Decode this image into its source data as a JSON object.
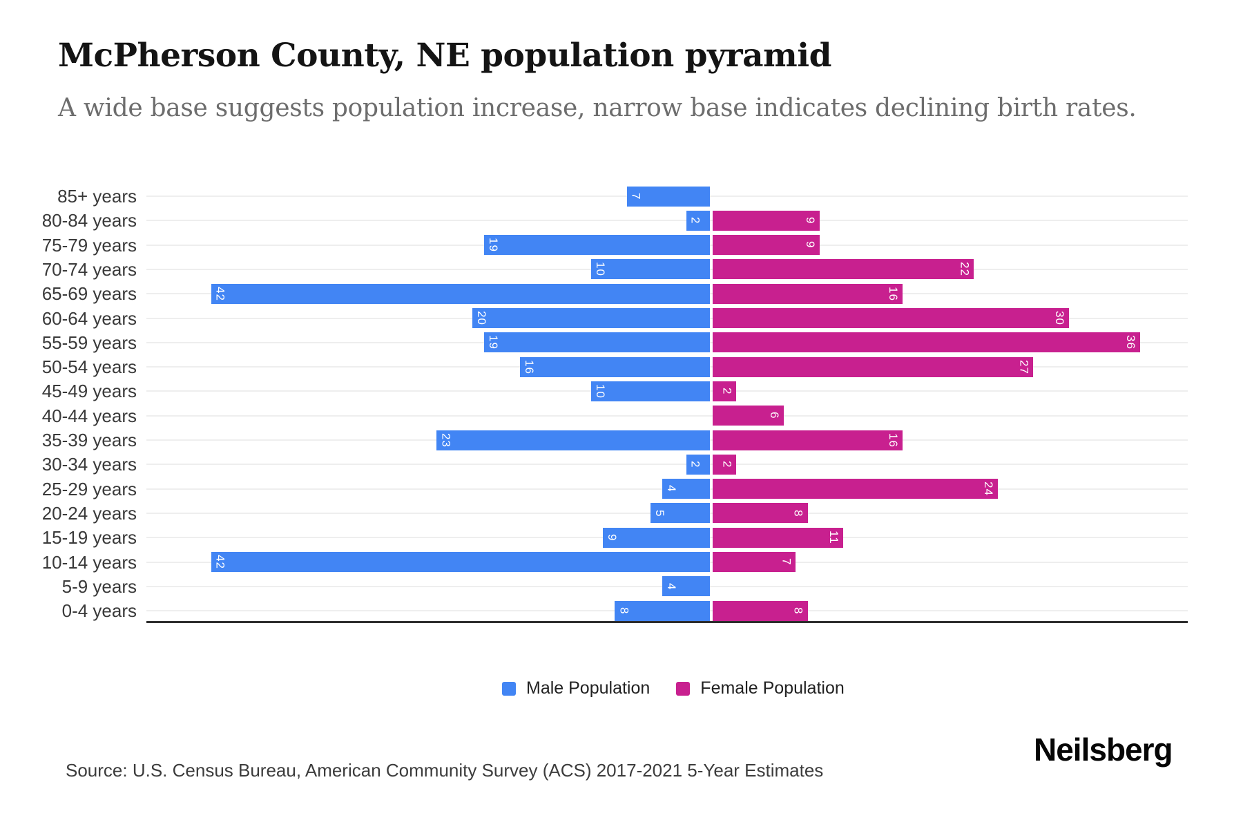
{
  "header": {
    "title": "McPherson County, NE population pyramid",
    "subtitle": "A wide base suggests population increase, narrow base indicates declining birth rates."
  },
  "chart_data": {
    "type": "bar",
    "variant": "population-pyramid-horizontal",
    "title": "McPherson County, NE population pyramid",
    "xlabel": "",
    "ylabel": "",
    "categories": [
      "85+ years",
      "80-84 years",
      "75-79 years",
      "70-74 years",
      "65-69 years",
      "60-64 years",
      "55-59 years",
      "50-54 years",
      "45-49 years",
      "40-44 years",
      "35-39 years",
      "30-34 years",
      "25-29 years",
      "20-24 years",
      "15-19 years",
      "10-14 years",
      "5-9 years",
      "0-4 years"
    ],
    "series": [
      {
        "name": "Male Population",
        "color": "#4285F4",
        "direction": "left",
        "values": [
          7,
          2,
          19,
          10,
          42,
          20,
          19,
          16,
          10,
          0,
          23,
          2,
          4,
          5,
          9,
          42,
          4,
          8
        ]
      },
      {
        "name": "Female Population",
        "color": "#C8208F",
        "direction": "right",
        "values": [
          0,
          9,
          9,
          22,
          16,
          30,
          36,
          27,
          2,
          6,
          16,
          2,
          24,
          8,
          11,
          7,
          0,
          8
        ]
      }
    ],
    "value_labels": "white, rotated 90deg, inside far end of each nonzero bar",
    "axis_hints": {
      "male_axis_max": 47,
      "female_axis_max": 40,
      "numeric_ticks_shown": false
    },
    "grid": "one light horizontal line per category row",
    "legend_position": "bottom-center"
  },
  "legend": {
    "items": [
      {
        "label": "Male Population",
        "color": "#4285F4"
      },
      {
        "label": "Female Population",
        "color": "#C8208F"
      }
    ]
  },
  "footer": {
    "source": "Source: U.S. Census Bureau, American Community Survey (ACS) 2017-2021 5-Year Estimates",
    "brand": "Neilsberg"
  }
}
